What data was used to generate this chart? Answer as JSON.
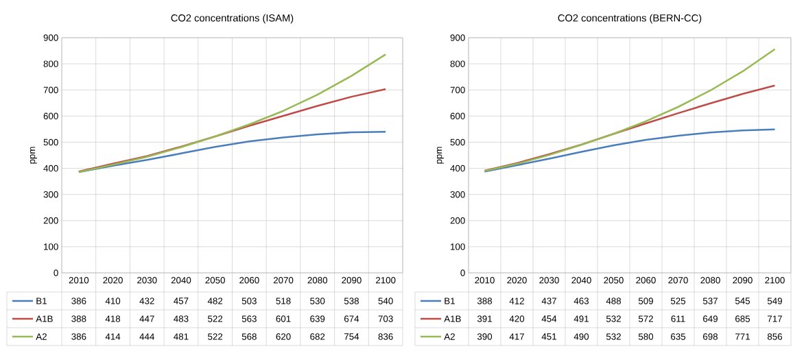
{
  "chart_data": [
    {
      "type": "line",
      "title": "CO2 concentrations (ISAM)",
      "ylabel": "ppm",
      "categories": [
        "2010",
        "2020",
        "2030",
        "2040",
        "2050",
        "2060",
        "2070",
        "2080",
        "2090",
        "2100"
      ],
      "series": [
        {
          "name": "B1",
          "color": "#4a7ebb",
          "values": [
            386,
            410,
            432,
            457,
            482,
            503,
            518,
            530,
            538,
            540
          ]
        },
        {
          "name": "A1B",
          "color": "#be4b48",
          "values": [
            388,
            418,
            447,
            483,
            522,
            563,
            601,
            639,
            674,
            703
          ]
        },
        {
          "name": "A2",
          "color": "#98b954",
          "values": [
            386,
            414,
            444,
            481,
            522,
            568,
            620,
            682,
            754,
            836
          ]
        }
      ],
      "ylim": [
        0,
        900
      ],
      "yticks": [
        0,
        100,
        200,
        300,
        400,
        500,
        600,
        700,
        800,
        900
      ],
      "grid": true,
      "data_labels": true,
      "legend": "bottom"
    },
    {
      "type": "line",
      "title": "CO2 concentrations (BERN-CC)",
      "ylabel": "ppm",
      "categories": [
        "2010",
        "2020",
        "2030",
        "2040",
        "2050",
        "2060",
        "2070",
        "2080",
        "2090",
        "2100"
      ],
      "series": [
        {
          "name": "B1",
          "color": "#4a7ebb",
          "values": [
            388,
            412,
            437,
            463,
            488,
            509,
            525,
            537,
            545,
            549
          ]
        },
        {
          "name": "A1B",
          "color": "#be4b48",
          "values": [
            391,
            420,
            454,
            491,
            532,
            572,
            611,
            649,
            685,
            717
          ]
        },
        {
          "name": "A2",
          "color": "#98b954",
          "values": [
            390,
            417,
            451,
            490,
            532,
            580,
            635,
            698,
            771,
            856
          ]
        }
      ],
      "ylim": [
        0,
        900
      ],
      "yticks": [
        0,
        100,
        200,
        300,
        400,
        500,
        600,
        700,
        800,
        900
      ],
      "grid": true,
      "data_labels": true,
      "legend": "bottom"
    }
  ]
}
